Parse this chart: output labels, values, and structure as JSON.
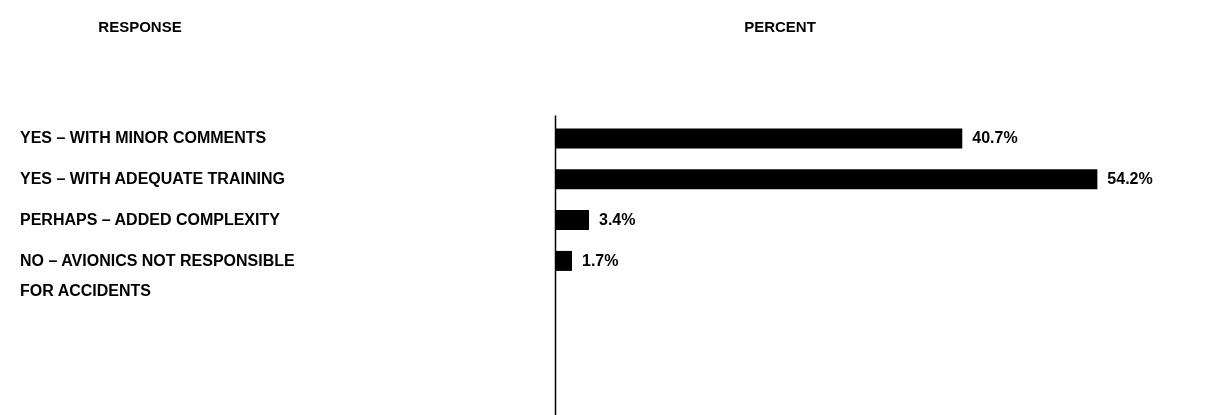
{
  "chart_data": {
    "type": "bar",
    "orientation": "horizontal",
    "annotations": [
      "RESPONSE",
      "PERCENT"
    ],
    "categories": [
      "YES – WITH MINOR COMMENTS",
      "YES – WITH ADEQUATE TRAINING",
      "PERHAPS – ADDED COMPLEXITY",
      "NO – AVIONICS NOT RESPONSIBLE FOR ACCIDENTS"
    ],
    "values": [
      40.7,
      54.2,
      3.4,
      1.7
    ],
    "value_labels": [
      "40.7%",
      "54.2%",
      "3.4%",
      "1.7%"
    ],
    "color": "#000000"
  }
}
